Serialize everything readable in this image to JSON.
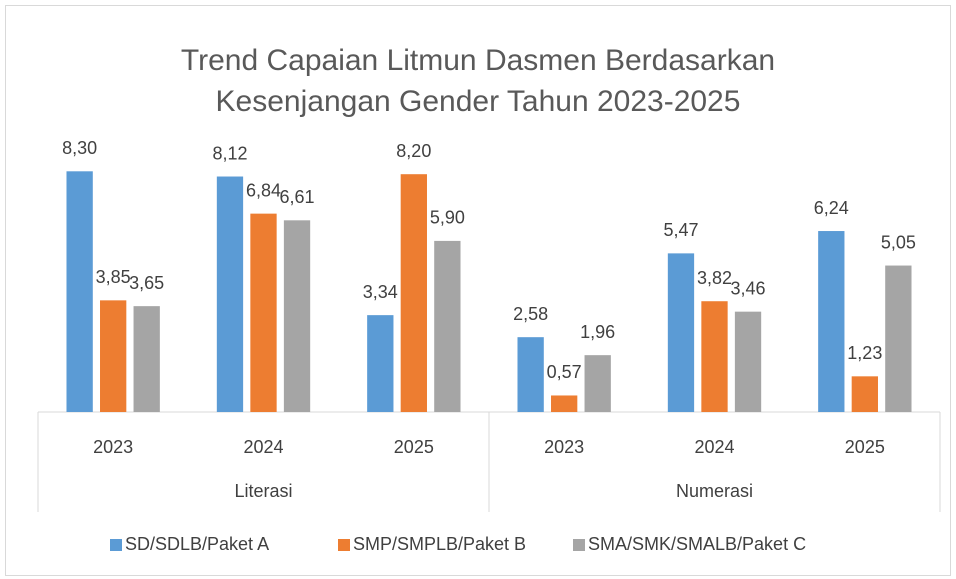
{
  "chart_data": {
    "type": "bar",
    "title": "Trend Capaian Litmun Dasmen Berdasarkan Kesenjangan Gender Tahun 2023-2025",
    "groups": [
      {
        "label": "Literasi",
        "categories": [
          "2023",
          "2024",
          "2025"
        ]
      },
      {
        "label": "Numerasi",
        "categories": [
          "2023",
          "2024",
          "2025"
        ]
      }
    ],
    "series": [
      {
        "name": "SD/SDLB/Paket A",
        "color": "#5b9bd5",
        "values": [
          8.3,
          8.12,
          3.34,
          2.58,
          5.47,
          6.24
        ],
        "value_labels": [
          "8,30",
          "8,12",
          "3,34",
          "2,58",
          "5,47",
          "6,24"
        ]
      },
      {
        "name": "SMP/SMPLB/Paket B",
        "color": "#ed7d31",
        "values": [
          3.85,
          6.84,
          8.2,
          0.57,
          3.82,
          1.23
        ],
        "value_labels": [
          "3,85",
          "6,84",
          "8,20",
          "0,57",
          "3,82",
          "1,23"
        ]
      },
      {
        "name": "SMA/SMK/SMALB/Paket C",
        "color": "#a5a5a5",
        "values": [
          3.65,
          6.61,
          5.9,
          1.96,
          3.46,
          5.05
        ],
        "value_labels": [
          "3,65",
          "6,61",
          "5,90",
          "1,96",
          "3,46",
          "5,05"
        ]
      }
    ],
    "legend": "bottom"
  }
}
